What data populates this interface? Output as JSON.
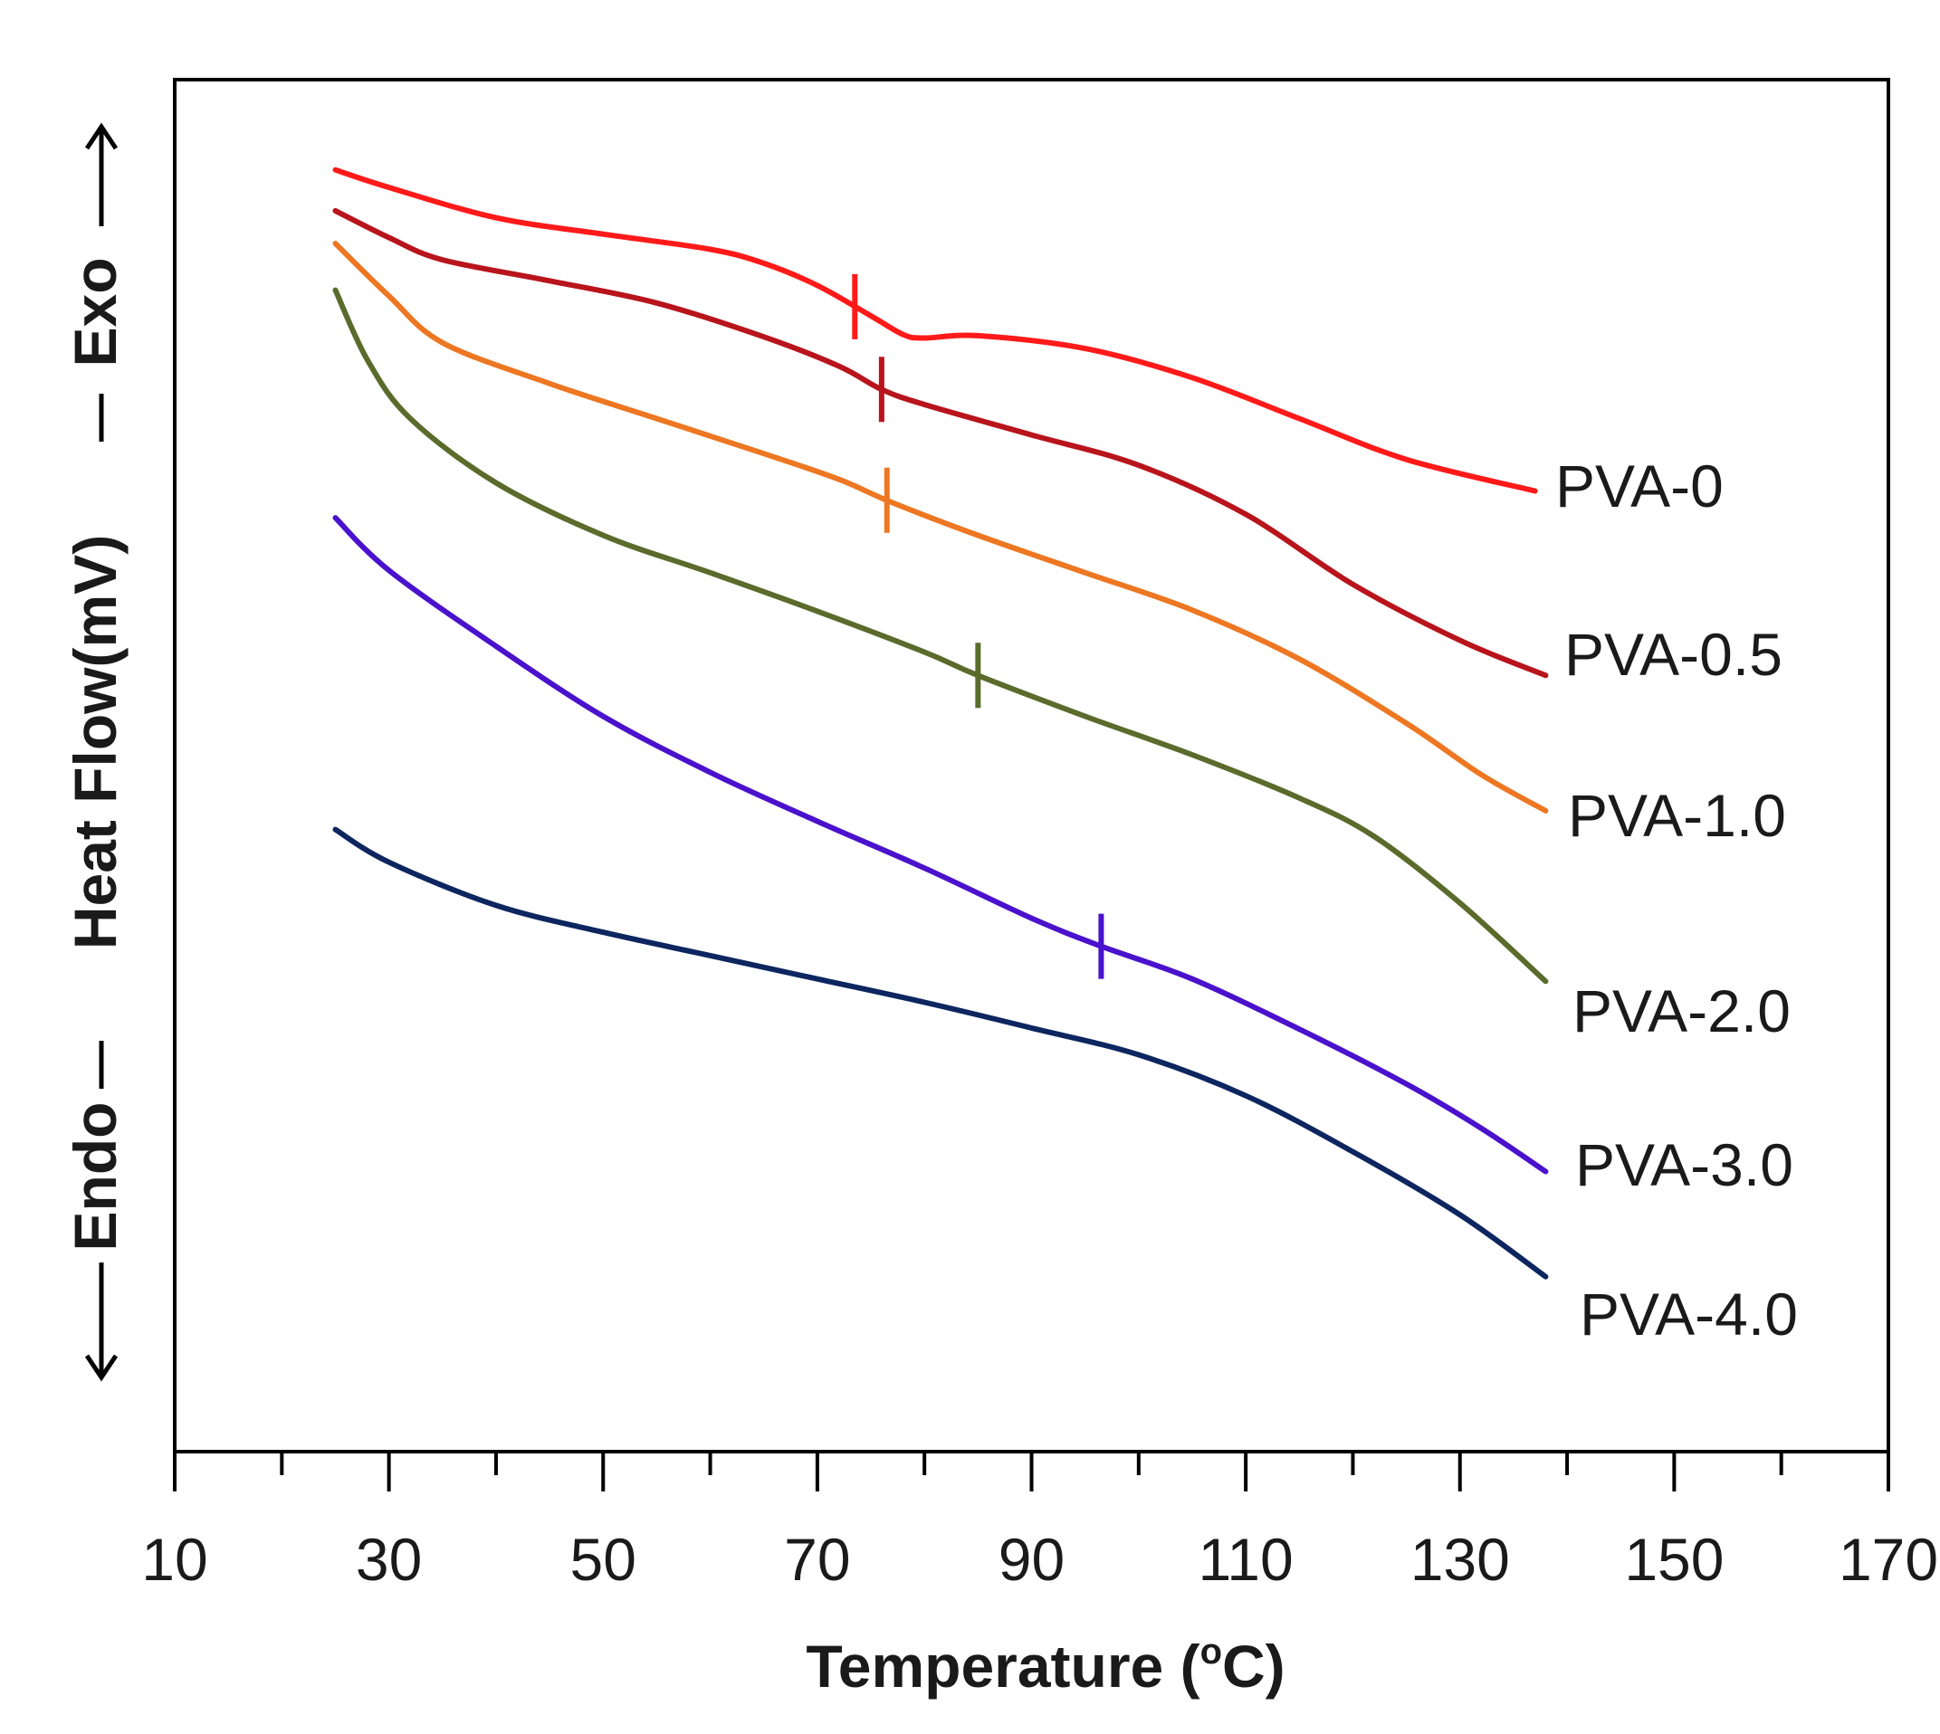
{
  "chart_data": {
    "type": "line",
    "title": "",
    "xlabel": "Temperature (°C)",
    "xlabel_main": "Temperature (",
    "xlabel_sup": "o",
    "xlabel_end": "C)",
    "ylabel": "←Endo — Heat Flow(mV) — Exo→",
    "ylabel_endo": "Endo",
    "ylabel_main": "Heat Flow(mV)",
    "ylabel_exo": "Exo",
    "xlim": [
      10,
      170
    ],
    "ylim": [
      0,
      100
    ],
    "xticks": [
      10,
      30,
      50,
      70,
      90,
      110,
      130,
      150,
      170
    ],
    "minor_xticks": [
      20,
      40,
      60,
      80,
      100,
      120,
      140,
      160
    ],
    "y_units": "relative heat flow (no numeric scale shown)",
    "series": [
      {
        "name": "PVA-0",
        "color": "#ff1a1a",
        "tg": 73.5,
        "points": [
          [
            25,
            96.3
          ],
          [
            30,
            94.8
          ],
          [
            40,
            92.2
          ],
          [
            50,
            90.8
          ],
          [
            60,
            89.5
          ],
          [
            65,
            88.3
          ],
          [
            70,
            86.4
          ],
          [
            75,
            83.8
          ],
          [
            78,
            82.2
          ],
          [
            80,
            81.9
          ],
          [
            85,
            82.1
          ],
          [
            95,
            81.0
          ],
          [
            105,
            78.5
          ],
          [
            115,
            75.0
          ],
          [
            125,
            71.5
          ],
          [
            137,
            68.8
          ]
        ]
      },
      {
        "name": "PVA-0.5",
        "color": "#b8141c",
        "tg": 76,
        "points": [
          [
            25,
            92.8
          ],
          [
            30,
            90.5
          ],
          [
            35,
            88.6
          ],
          [
            45,
            86.8
          ],
          [
            55,
            84.9
          ],
          [
            65,
            82.0
          ],
          [
            72,
            79.5
          ],
          [
            76,
            77.5
          ],
          [
            80,
            76.2
          ],
          [
            90,
            73.6
          ],
          [
            100,
            71.0
          ],
          [
            110,
            66.8
          ],
          [
            120,
            60.8
          ],
          [
            130,
            56.0
          ],
          [
            138,
            53.0
          ]
        ]
      },
      {
        "name": "PVA-1.0",
        "color": "#ed7722",
        "tg": 76.5,
        "points": [
          [
            25,
            90.0
          ],
          [
            30,
            85.5
          ],
          [
            35,
            81.5
          ],
          [
            45,
            78.0
          ],
          [
            55,
            75.0
          ],
          [
            65,
            72.0
          ],
          [
            72,
            69.8
          ],
          [
            77,
            67.8
          ],
          [
            85,
            65.0
          ],
          [
            95,
            61.8
          ],
          [
            105,
            58.6
          ],
          [
            115,
            54.4
          ],
          [
            125,
            48.9
          ],
          [
            132,
            44.5
          ],
          [
            138,
            41.4
          ]
        ]
      },
      {
        "name": "PVA-2.0",
        "color": "#5a6b2b",
        "tg": 85,
        "points": [
          [
            25,
            86.0
          ],
          [
            28,
            80.0
          ],
          [
            32,
            75.0
          ],
          [
            40,
            69.5
          ],
          [
            50,
            65.0
          ],
          [
            60,
            61.8
          ],
          [
            70,
            58.5
          ],
          [
            80,
            55.0
          ],
          [
            85,
            53.0
          ],
          [
            95,
            49.5
          ],
          [
            105,
            46.2
          ],
          [
            115,
            42.5
          ],
          [
            122,
            39.2
          ],
          [
            130,
            33.5
          ],
          [
            138,
            26.8
          ]
        ]
      },
      {
        "name": "PVA-3.0",
        "color": "#4a12cc",
        "tg": 96.5,
        "points": [
          [
            25,
            66.5
          ],
          [
            30,
            62.0
          ],
          [
            40,
            55.5
          ],
          [
            50,
            49.5
          ],
          [
            60,
            44.7
          ],
          [
            70,
            40.5
          ],
          [
            80,
            36.5
          ],
          [
            90,
            32.2
          ],
          [
            96.5,
            29.8
          ],
          [
            105,
            27.0
          ],
          [
            115,
            22.7
          ],
          [
            125,
            18.0
          ],
          [
            132,
            14.2
          ],
          [
            138,
            10.5
          ]
        ]
      },
      {
        "name": "PVA-4.0",
        "color": "#0d2660",
        "tg": null,
        "points": [
          [
            25,
            39.8
          ],
          [
            30,
            37.0
          ],
          [
            40,
            33.3
          ],
          [
            50,
            31.0
          ],
          [
            60,
            29.0
          ],
          [
            70,
            27.0
          ],
          [
            80,
            25.0
          ],
          [
            90,
            22.8
          ],
          [
            100,
            20.5
          ],
          [
            110,
            17.0
          ],
          [
            120,
            12.2
          ],
          [
            130,
            6.8
          ],
          [
            138,
            1.5
          ]
        ]
      }
    ],
    "labels": [
      "PVA-0",
      "PVA-0.5",
      "PVA-1.0",
      "PVA-2.0",
      "PVA-3.0",
      "PVA-4.0"
    ]
  }
}
